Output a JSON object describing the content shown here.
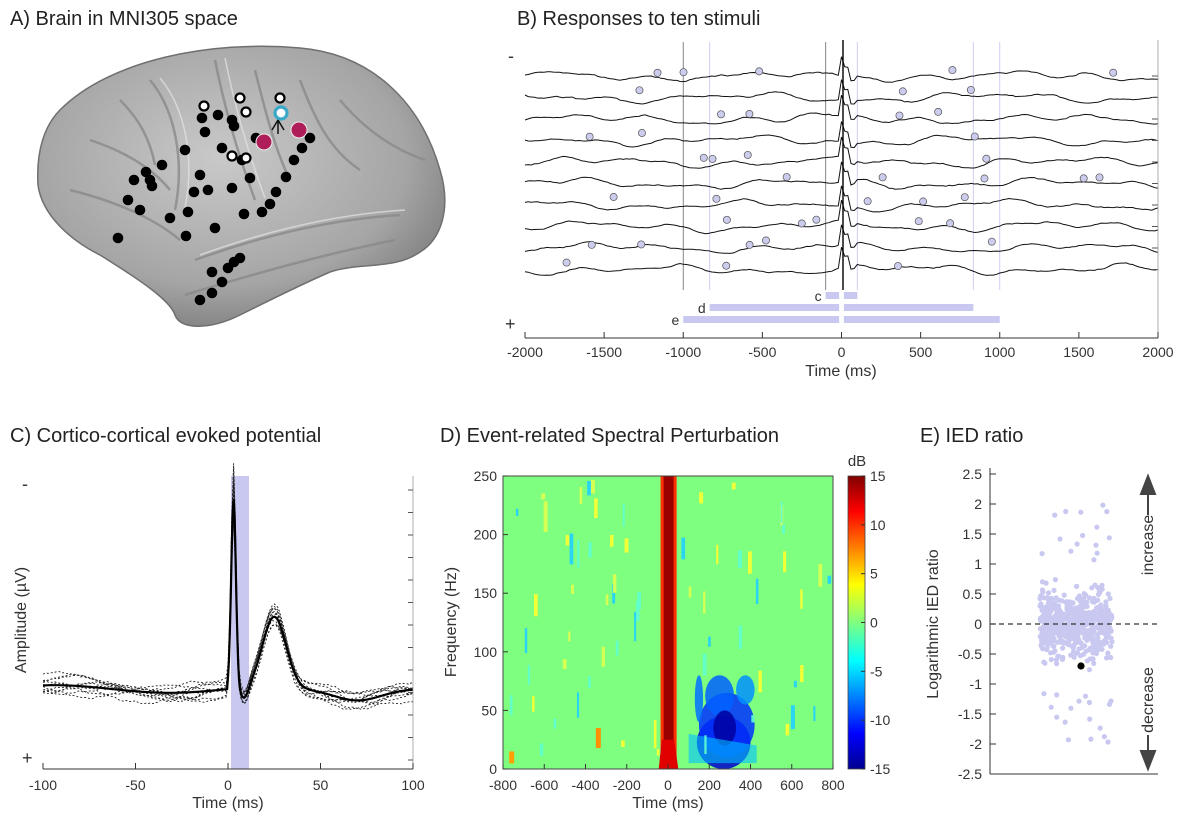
{
  "panels": {
    "a": {
      "title": "A) Brain in MNI305 space",
      "colors": {
        "brain": "#a9a9a9",
        "electrode": "#000000",
        "stim": "#b01e5a",
        "record": "#3aa9c9"
      }
    },
    "b": {
      "title": "B) Responses to ten stimuli",
      "minus": "-",
      "plus": "+",
      "xlabel": "Time (ms)",
      "xticks": [
        "-2000",
        "-1500",
        "-1000",
        "-500",
        "0",
        "500",
        "1000",
        "1500",
        "2000"
      ],
      "windows": [
        {
          "label": "c",
          "from": -100,
          "to": 100
        },
        {
          "label": "d",
          "from": -833,
          "to": 833
        },
        {
          "label": "e",
          "from": -1000,
          "to": 1000
        }
      ],
      "window_color": "#c8c8f0"
    },
    "c": {
      "title": "C) Cortico-cortical evoked potential",
      "minus": "-",
      "plus": "+",
      "xlabel": "Time (ms)",
      "ylabel": "Amplitude (µV)",
      "xticks": [
        "-100",
        "-50",
        "0",
        "50",
        "100"
      ]
    },
    "d": {
      "title": "D) Event-related Spectral Perturbation",
      "xlabel": "Time (ms)",
      "ylabel": "Frequency (Hz)",
      "xticks": [
        "-800",
        "-600",
        "-400",
        "-200",
        "0",
        "200",
        "400",
        "600",
        "800"
      ],
      "yticks": [
        "0",
        "50",
        "100",
        "150",
        "200",
        "250"
      ],
      "colorbar_label": "dB",
      "colorbar_ticks": [
        "15",
        "10",
        "5",
        "0",
        "-5",
        "-10",
        "-15"
      ]
    },
    "e": {
      "title": "E) IED ratio",
      "ylabel": "Logarithmic IED ratio",
      "yticks": [
        "2.5",
        "2",
        "1.5",
        "1",
        "0.5",
        "0",
        "-0.5",
        "-1",
        "-1.5",
        "-2",
        "-2.5"
      ],
      "increase": "increase",
      "decrease": "decrease",
      "point_color": "#c8c8f0"
    }
  },
  "chart_data": [
    {
      "type": "line",
      "panel": "B",
      "title": "B) Responses to ten stimuli",
      "xlabel": "Time (ms)",
      "xlim": [
        -2000,
        2000
      ],
      "n_traces": 10,
      "stimulus_time": 0,
      "windows_ms": {
        "c": [
          -100,
          100
        ],
        "d": [
          -833,
          833
        ],
        "e": [
          -1000,
          1000
        ]
      }
    },
    {
      "type": "line",
      "panel": "C",
      "title": "C) Cortico-cortical evoked potential",
      "xlabel": "Time (ms)",
      "ylabel": "Amplitude (µV)",
      "xlim": [
        -100,
        100
      ],
      "shaded_window_ms": [
        0,
        10
      ],
      "mean_peaks": [
        {
          "x": 3,
          "y": 1.0
        },
        {
          "x": 25,
          "y": 0.38
        }
      ],
      "n_single_trials": 10
    },
    {
      "type": "heatmap",
      "panel": "D",
      "title": "D) Event-related Spectral Perturbation",
      "xlabel": "Time (ms)",
      "ylabel": "Frequency (Hz)",
      "xlim": [
        -800,
        800
      ],
      "ylim": [
        0,
        250
      ],
      "clim": [
        -15,
        15
      ],
      "colorbar_label": "dB",
      "features": [
        {
          "kind": "increase",
          "t": [
            -30,
            30
          ],
          "f": [
            0,
            250
          ],
          "value": 15
        },
        {
          "kind": "decrease",
          "t": [
            100,
            420
          ],
          "f": [
            0,
            80
          ],
          "value": -9
        }
      ]
    },
    {
      "type": "scatter",
      "panel": "E",
      "title": "E) IED ratio",
      "ylabel": "Logarithmic IED ratio",
      "ylim": [
        -2.5,
        2.5
      ],
      "reference_line": 0,
      "highlighted_point": {
        "y": -0.7
      },
      "n_points_approx": 600
    }
  ]
}
